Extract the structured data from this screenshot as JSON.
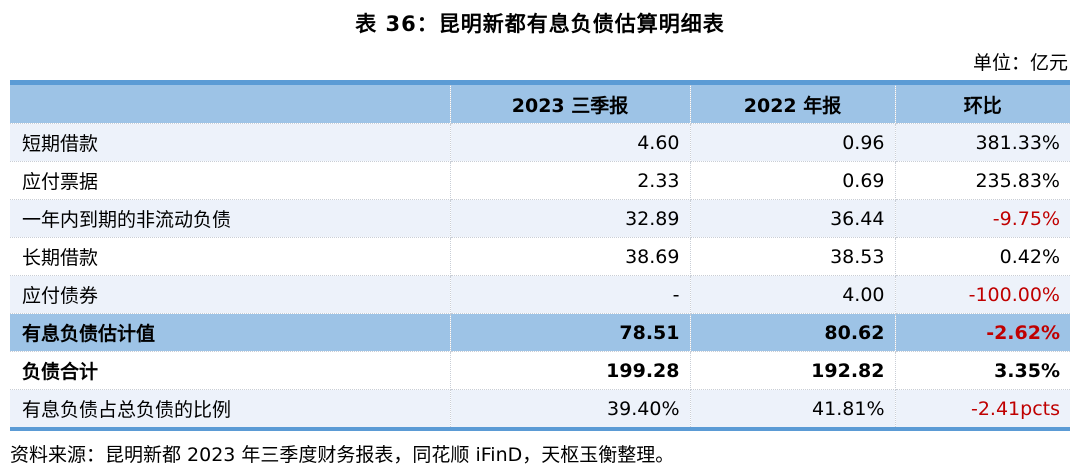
{
  "page": {
    "title": "表 36：昆明新都有息负债估算明细表",
    "unit_note": "单位：亿元",
    "source_note": "资料来源：昆明新都 2023 年三季度财务报表，同花顺 iFinD，天枢玉衡整理。"
  },
  "colors": {
    "table_border": "#5B9BD5",
    "header_bg": "#9DC3E6",
    "highlight_row_bg": "#9DC3E6",
    "band_row_bg": "#EDF2FA",
    "negative_red": "#C00000",
    "text_black": "#000000"
  },
  "chart_data": {
    "type": "table",
    "title": "表 36：昆明新都有息负债估算明细表",
    "unit": "亿元",
    "columns": [
      "",
      "2023 三季报",
      "2022 年报",
      "环比"
    ],
    "rows": [
      {
        "label": "短期借款",
        "q3_2023": "4.60",
        "fy_2022": "0.96",
        "qoq": "381.33%"
      },
      {
        "label": "应付票据",
        "q3_2023": "2.33",
        "fy_2022": "0.69",
        "qoq": "235.83%"
      },
      {
        "label": "一年内到期的非流动负债",
        "q3_2023": "32.89",
        "fy_2022": "36.44",
        "qoq": "-9.75%"
      },
      {
        "label": "长期借款",
        "q3_2023": "38.69",
        "fy_2022": "38.53",
        "qoq": "0.42%"
      },
      {
        "label": "应付债券",
        "q3_2023": "-",
        "fy_2022": "4.00",
        "qoq": "-100.00%"
      },
      {
        "label": "有息负债估计值",
        "q3_2023": "78.51",
        "fy_2022": "80.62",
        "qoq": "-2.62%"
      },
      {
        "label": "负债合计",
        "q3_2023": "199.28",
        "fy_2022": "192.82",
        "qoq": "3.35%"
      },
      {
        "label": "有息负债占总负债的比例",
        "q3_2023": "39.40%",
        "fy_2022": "41.81%",
        "qoq": "-2.41pcts"
      }
    ]
  }
}
